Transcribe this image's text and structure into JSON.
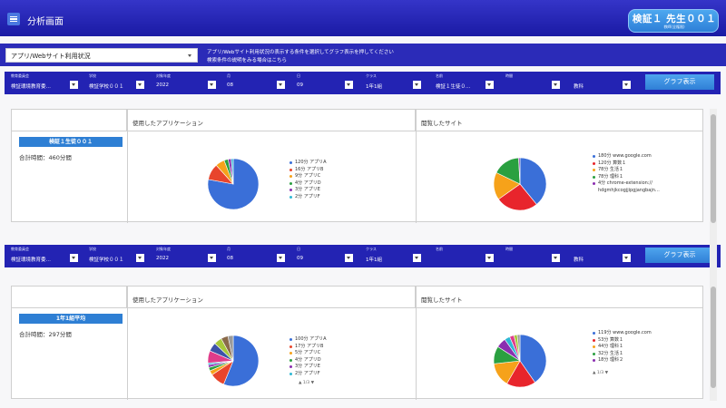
{
  "header": {
    "menu_icon": "hamburger-menu-icon",
    "title": "分析画面",
    "user_name": "検証１ 先生００１",
    "user_role": "教師(全権限)"
  },
  "subheader": {
    "view_select": "アプリ/Webサイト利用状況",
    "hint_line1": "アプリ/Webサイト利用状況の表示する条件を選択してグラフ表示を押してください",
    "hint_line2": "検索条件の説明をみる場合はこちら"
  },
  "filters": {
    "labels": [
      "教育委員会",
      "学校",
      "対象年度",
      "月",
      "日",
      "クラス",
      "名前",
      "時間"
    ],
    "bar1": [
      "検証環境教育委…",
      "検証学校００１",
      "2022",
      "08",
      "09",
      "1年1組",
      "検証１生徒０…",
      "",
      "教科"
    ],
    "bar2": [
      "検証環境教育委…",
      "検証学校００１",
      "2022",
      "08",
      "09",
      "1年1組",
      "",
      "",
      "教科"
    ],
    "button_label": "グラフ表示"
  },
  "panels": [
    {
      "name": "検証１生徒００１",
      "total": "合計時間：460分間",
      "apps_header": "使用したアプリケーション",
      "sites_header": "閲覧したサイト",
      "apps": [
        {
          "label": "120分 アプリA",
          "value": 120,
          "color": "#3a6fd8"
        },
        {
          "label": "16分 アプリB",
          "value": 16,
          "color": "#e8452c"
        },
        {
          "label": "9分 アプリC",
          "value": 9,
          "color": "#f6a21a"
        },
        {
          "label": "4分 アプリD",
          "value": 4,
          "color": "#2aa040"
        },
        {
          "label": "3分 アプリE",
          "value": 3,
          "color": "#8b2fb0"
        },
        {
          "label": "2分 アプリF",
          "value": 2,
          "color": "#2eb8d4"
        }
      ],
      "sites": [
        {
          "label": "180分 www.google.com",
          "value": 180,
          "color": "#3a6fd8"
        },
        {
          "label": "120分 算数１",
          "value": 120,
          "color": "#e8252c"
        },
        {
          "label": "78分 生活１",
          "value": 78,
          "color": "#f6a21a"
        },
        {
          "label": "78分 理科１",
          "value": 78,
          "color": "#2aa040"
        },
        {
          "label": "4分 chrome-extension://",
          "value": 4,
          "color": "#8b2fb0"
        },
        {
          "label": "hdgmhjkcogjjipgjangbajn…",
          "value": null,
          "color": null
        }
      ],
      "apps_pager": "",
      "sites_pager": ""
    },
    {
      "name": "1年1組平均",
      "total": "合計時間：297分間",
      "apps_header": "使用したアプリケーション",
      "sites_header": "閲覧したサイト",
      "apps": [
        {
          "label": "100分 アプリA",
          "value": 100,
          "color": "#3a6fd8"
        },
        {
          "label": "17分 アプリB",
          "value": 17,
          "color": "#e8452c"
        },
        {
          "label": "5分 アプリC",
          "value": 5,
          "color": "#f6a21a"
        },
        {
          "label": "4分 アプリD",
          "value": 4,
          "color": "#2aa040"
        },
        {
          "label": "3分 アプリE",
          "value": 3,
          "color": "#8b2fb0"
        },
        {
          "label": "2分 アプリF",
          "value": 2,
          "color": "#2eb8d4"
        }
      ],
      "apps_pie_extra": [
        {
          "value": 14,
          "color": "#e03c8a"
        },
        {
          "value": 10,
          "color": "#3d52a8"
        },
        {
          "value": 9,
          "color": "#a7c83a"
        },
        {
          "value": 8,
          "color": "#8a6a4a"
        },
        {
          "value": 6,
          "color": "#9a9a9a"
        }
      ],
      "sites": [
        {
          "label": "119分 www.google.com",
          "value": 119,
          "color": "#3a6fd8"
        },
        {
          "label": "53分 算数１",
          "value": 53,
          "color": "#e8252c"
        },
        {
          "label": "44分 理科１",
          "value": 44,
          "color": "#f6a21a"
        },
        {
          "label": "32分 生活１",
          "value": 32,
          "color": "#2aa040"
        },
        {
          "label": "18分 理科２",
          "value": 18,
          "color": "#8b2fb0"
        }
      ],
      "sites_pie_extra": [
        {
          "value": 10,
          "color": "#2eb8d4"
        },
        {
          "value": 8,
          "color": "#e03c8a"
        },
        {
          "value": 6,
          "color": "#a7c83a"
        },
        {
          "value": 5,
          "color": "#9a9a9a"
        }
      ],
      "apps_pager": "▲ 1/3 ▼",
      "sites_pager": "▲ 1/3 ▼"
    }
  ]
}
